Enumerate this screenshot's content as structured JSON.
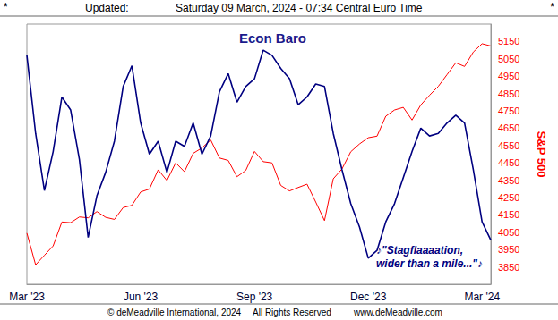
{
  "header": {
    "marks": [
      "*",
      "*"
    ],
    "label": "Updated:",
    "text": "Saturday 09 March, 2024 - 07:34 Central Euro Time"
  },
  "footer": [
    "© deMeadville International, 2024",
    "All Rights Reserved",
    "www.deMeadville.com"
  ],
  "chart_data": {
    "type": "line",
    "title": "Econ Baro",
    "y2label": "S&P 500",
    "annotation": [
      "♪\"Stagflaaaation,",
      "wider than a mile...\"♪"
    ],
    "categories": [
      "Mar '23",
      null,
      null,
      null,
      null,
      null,
      null,
      null,
      null,
      null,
      null,
      null,
      null,
      "Jun '23",
      null,
      null,
      null,
      null,
      null,
      null,
      null,
      null,
      null,
      null,
      null,
      null,
      "Sep '23",
      null,
      null,
      null,
      null,
      null,
      null,
      null,
      null,
      null,
      null,
      null,
      null,
      "Dec '23",
      null,
      null,
      null,
      null,
      null,
      null,
      null,
      null,
      null,
      null,
      null,
      null,
      "Mar '24",
      null
    ],
    "series": [
      {
        "name": "Econ Baro",
        "color": "#000080",
        "axis": "y",
        "values": [
          88,
          58,
          36,
          51,
          72,
          67,
          48,
          18,
          34,
          43,
          55,
          76,
          84,
          62,
          50,
          55,
          43,
          55,
          53,
          62,
          50,
          57,
          74,
          81,
          70,
          76,
          79,
          90,
          88,
          83,
          79,
          69,
          72,
          77,
          76,
          58,
          44,
          31,
          22,
          10,
          13,
          24,
          31,
          41,
          51,
          60,
          57,
          58,
          62,
          65,
          62,
          44,
          24,
          17
        ]
      },
      {
        "name": "S&P 500",
        "color": "#ff0000",
        "axis": "y2",
        "values": [
          4045,
          3862,
          3917,
          3971,
          4109,
          4105,
          4138,
          4133,
          4169,
          4136,
          4124,
          4192,
          4205,
          4282,
          4299,
          4410,
          4348,
          4450,
          4399,
          4505,
          4536,
          4582,
          4478,
          4464,
          4370,
          4406,
          4516,
          4457,
          4450,
          4320,
          4288,
          4308,
          4327,
          4224,
          4117,
          4358,
          4415,
          4514,
          4559,
          4595,
          4604,
          4719,
          4755,
          4770,
          4697,
          4784,
          4840,
          4891,
          4959,
          5027,
          5006,
          5089,
          5137,
          5124
        ]
      }
    ],
    "ylim": [
      0,
      100
    ],
    "y2lim": [
      3750,
      5250
    ],
    "y2ticks": [
      3850,
      3950,
      4050,
      4150,
      4250,
      4350,
      4450,
      4550,
      4650,
      4750,
      4850,
      4950,
      5050,
      5150
    ],
    "grid": false
  }
}
